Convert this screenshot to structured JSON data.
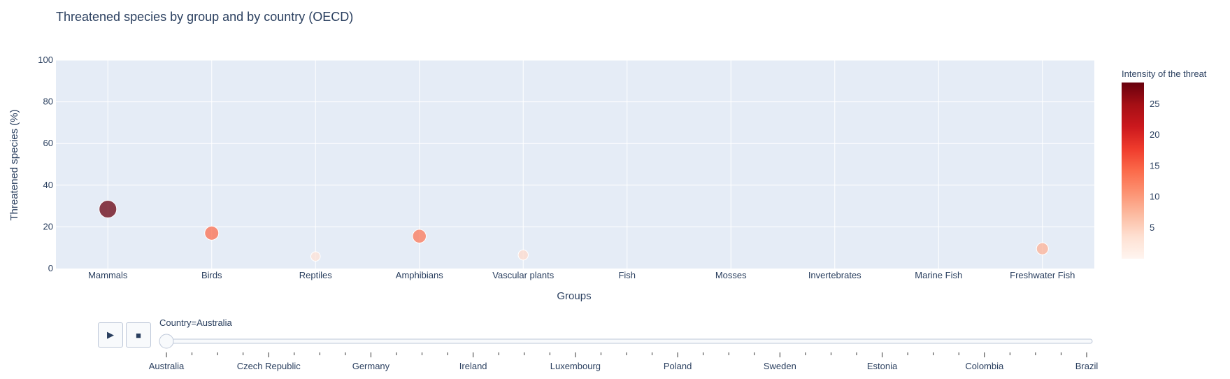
{
  "page": {
    "title": "Threatened species by group and by country (OECD)"
  },
  "chart_data": {
    "type": "scatter",
    "title": "Threatened species by group and by country (OECD)",
    "xlabel": "Groups",
    "ylabel": "Threatened species (%)",
    "ylim": [
      0,
      100
    ],
    "yticks": [
      0,
      20,
      40,
      60,
      80,
      100
    ],
    "grid": true,
    "categories": [
      "Mammals",
      "Birds",
      "Reptiles",
      "Amphibians",
      "Vascular plants",
      "Fish",
      "Mosses",
      "Invertebrates",
      "Marine Fish",
      "Freshwater Fish"
    ],
    "points": [
      {
        "x": "Mammals",
        "y": 28.5,
        "intensity": 28.5
      },
      {
        "x": "Birds",
        "y": 17.0,
        "intensity": 14.0
      },
      {
        "x": "Reptiles",
        "y": 5.8,
        "intensity": 3.0
      },
      {
        "x": "Amphibians",
        "y": 15.5,
        "intensity": 13.0
      },
      {
        "x": "Vascular plants",
        "y": 6.5,
        "intensity": 4.0
      },
      {
        "x": "Freshwater Fish",
        "y": 9.5,
        "intensity": 8.0
      }
    ],
    "colorbar": {
      "title": "Intensity of the threat",
      "range": [
        0,
        28.5
      ],
      "ticks": [
        5,
        10,
        15,
        20,
        25
      ],
      "colorscale": [
        "#fff5f0",
        "#fee0d2",
        "#fcbba1",
        "#fc9272",
        "#fb6a4a",
        "#ef3b2c",
        "#cb181d",
        "#a50f15",
        "#67000d"
      ]
    },
    "legend": "none"
  },
  "animation": {
    "current_label": "Country=Australia",
    "play_icon": "play-icon",
    "stop_icon": "stop-icon",
    "play_glyph": "▶",
    "stop_glyph": "■",
    "labels": [
      "Australia",
      "Czech Republic",
      "Germany",
      "Ireland",
      "Luxembourg",
      "Poland",
      "Sweden",
      "Estonia",
      "Colombia",
      "Brazil"
    ],
    "steps": 37,
    "current_step": 0
  },
  "colors": {
    "plot_bg": "#e5ecf6",
    "grid": "#ffffff",
    "text": "#2a3f5f"
  }
}
